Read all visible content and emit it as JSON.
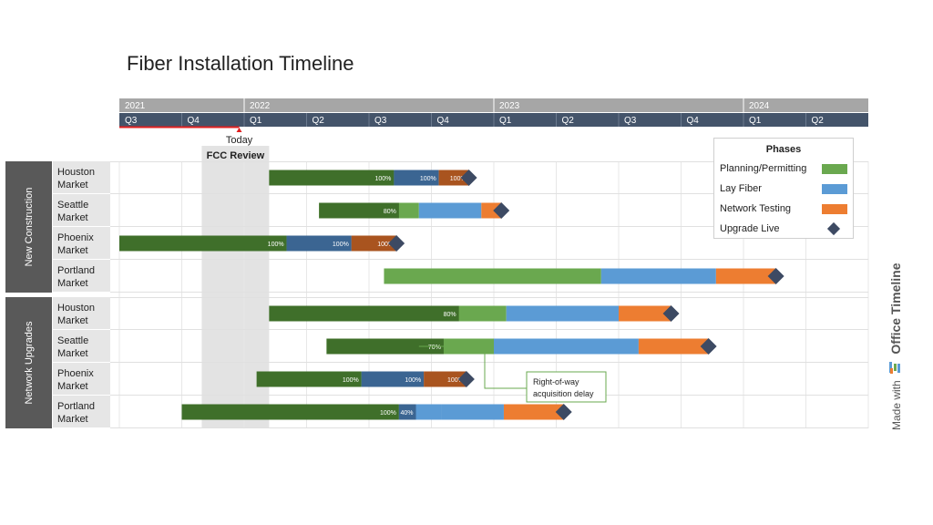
{
  "title": "Fiber Installation Timeline",
  "colors": {
    "planning": "#6aa84f",
    "planning_done": "#3f6f2a",
    "fiber": "#5b9bd5",
    "fiber_done": "#3b6592",
    "testing": "#ed7d31",
    "testing_done": "#a9541f",
    "milestone": "#3d4a63",
    "header_years": "#a6a6a6",
    "header_quarters": "#44546a",
    "group_label": "#595959"
  },
  "legend": {
    "title": "Phases",
    "items": [
      {
        "label": "Planning/Permitting",
        "color": "#6aa84f",
        "shape": "swatch"
      },
      {
        "label": "Lay Fiber",
        "color": "#5b9bd5",
        "shape": "swatch"
      },
      {
        "label": "Network Testing",
        "color": "#ed7d31",
        "shape": "swatch"
      },
      {
        "label": "Upgrade Live",
        "color": "#3d4a63",
        "shape": "diamond"
      }
    ]
  },
  "made_with": {
    "prefix": "Made with",
    "brand": "Office Timeline"
  },
  "chart_data": {
    "type": "gantt",
    "title": "Fiber Installation Timeline",
    "years": [
      "2021",
      "2022",
      "2023",
      "2024"
    ],
    "quarters": [
      "Q3",
      "Q4",
      "Q1",
      "Q2",
      "Q3",
      "Q4",
      "Q1",
      "Q2",
      "Q3",
      "Q4",
      "Q1",
      "Q2"
    ],
    "timeline_start": 2021.5,
    "timeline_end": 2024.5,
    "today": {
      "label": "Today",
      "value": 2021.98
    },
    "shaded_period": {
      "label": "FCC Review",
      "start": 2021.83,
      "end": 2022.1
    },
    "annotation": {
      "line1": "Right-of-way",
      "line2": "acquisition delay",
      "row": "network-seattle"
    },
    "groups": [
      {
        "name": "New Construction",
        "rows": [
          {
            "id": "new-houston",
            "label1": "Houston",
            "label2": "Market",
            "bars": [
              {
                "phase": "planning",
                "start": 2022.1,
                "end": 2022.6,
                "progress": 100,
                "label": "100%"
              },
              {
                "phase": "fiber",
                "start": 2022.6,
                "end": 2022.78,
                "progress": 100,
                "label": "100%"
              },
              {
                "phase": "testing",
                "start": 2022.78,
                "end": 2022.9,
                "progress": 100,
                "label": "100%"
              }
            ],
            "milestone": 2022.9
          },
          {
            "id": "new-seattle",
            "label1": "Seattle",
            "label2": "Market",
            "bars": [
              {
                "phase": "planning",
                "start": 2022.3,
                "end": 2022.7,
                "progress": 80,
                "label": "80%"
              },
              {
                "phase": "fiber",
                "start": 2022.7,
                "end": 2022.95,
                "progress": 0,
                "label": ""
              },
              {
                "phase": "testing",
                "start": 2022.95,
                "end": 2023.03,
                "progress": 0,
                "label": ""
              }
            ],
            "milestone": 2023.03
          },
          {
            "id": "new-phoenix",
            "label1": "Phoenix",
            "label2": "Market",
            "bars": [
              {
                "phase": "planning",
                "start": 2021.5,
                "end": 2022.17,
                "progress": 100,
                "label": "100%"
              },
              {
                "phase": "fiber",
                "start": 2022.17,
                "end": 2022.43,
                "progress": 100,
                "label": "100%"
              },
              {
                "phase": "testing",
                "start": 2022.43,
                "end": 2022.61,
                "progress": 100,
                "label": "100%"
              }
            ],
            "milestone": 2022.61
          },
          {
            "id": "new-portland",
            "label1": "Portland",
            "label2": "Market",
            "bars": [
              {
                "phase": "planning",
                "start": 2022.56,
                "end": 2023.43,
                "progress": 0,
                "label": ""
              },
              {
                "phase": "fiber",
                "start": 2023.43,
                "end": 2023.89,
                "progress": 0,
                "label": ""
              },
              {
                "phase": "testing",
                "start": 2023.89,
                "end": 2024.13,
                "progress": 0,
                "label": ""
              }
            ],
            "milestone": 2024.13
          }
        ]
      },
      {
        "name": "Network Upgrades",
        "rows": [
          {
            "id": "network-houston",
            "label1": "Houston",
            "label2": "Market",
            "bars": [
              {
                "phase": "planning",
                "start": 2022.1,
                "end": 2023.05,
                "progress": 80,
                "label": "80%"
              },
              {
                "phase": "fiber",
                "start": 2023.05,
                "end": 2023.5,
                "progress": 0,
                "label": ""
              },
              {
                "phase": "testing",
                "start": 2023.5,
                "end": 2023.71,
                "progress": 0,
                "label": ""
              }
            ],
            "milestone": 2023.71
          },
          {
            "id": "network-seattle",
            "label1": "Seattle",
            "label2": "Market",
            "bars": [
              {
                "phase": "planning",
                "start": 2022.33,
                "end": 2023.0,
                "progress": 70,
                "label": "70%"
              },
              {
                "phase": "fiber",
                "start": 2023.0,
                "end": 2023.58,
                "progress": 0,
                "label": ""
              },
              {
                "phase": "testing",
                "start": 2023.58,
                "end": 2023.86,
                "progress": 0,
                "label": ""
              }
            ],
            "milestone": 2023.86
          },
          {
            "id": "network-phoenix",
            "label1": "Phoenix",
            "label2": "Market",
            "bars": [
              {
                "phase": "planning",
                "start": 2022.05,
                "end": 2022.47,
                "progress": 100,
                "label": "100%"
              },
              {
                "phase": "fiber",
                "start": 2022.47,
                "end": 2022.72,
                "progress": 100,
                "label": "100%"
              },
              {
                "phase": "testing",
                "start": 2022.72,
                "end": 2022.89,
                "progress": 100,
                "label": "100%"
              }
            ],
            "milestone": 2022.89
          },
          {
            "id": "network-portland",
            "label1": "Portland",
            "label2": "Market",
            "bars": [
              {
                "phase": "planning",
                "start": 2021.75,
                "end": 2022.62,
                "progress": 100,
                "label": "100%"
              },
              {
                "phase": "fiber",
                "start": 2022.62,
                "end": 2022.79,
                "progress": 40,
                "label": "40%"
              },
              {
                "phase": "fiber",
                "start": 2022.79,
                "end": 2023.04,
                "progress": 0,
                "label": ""
              },
              {
                "phase": "testing",
                "start": 2023.04,
                "end": 2023.28,
                "progress": 0,
                "label": ""
              }
            ],
            "milestone": 2023.28
          }
        ]
      }
    ]
  }
}
